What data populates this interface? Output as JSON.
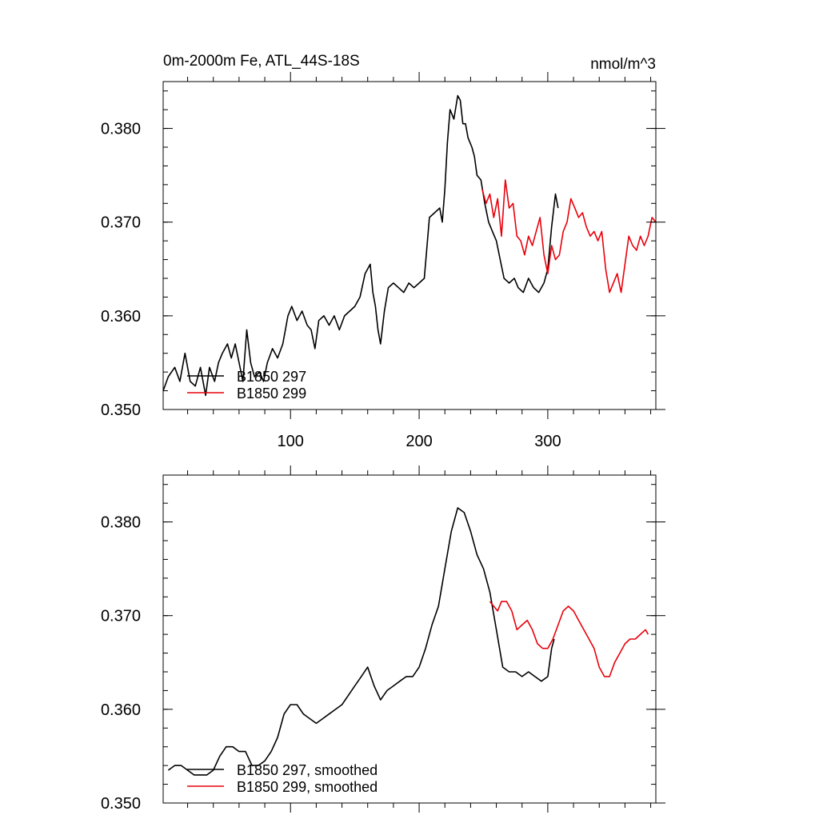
{
  "chart_data": [
    {
      "type": "line",
      "title": "0m-2000m Fe, ATL_44S-18S",
      "units": "nmol/m^3",
      "xlim": [
        1,
        384
      ],
      "ylim": [
        0.35,
        0.385
      ],
      "x_ticks": [
        100,
        200,
        300
      ],
      "x_tick_labels": [
        "100",
        "200",
        "300"
      ],
      "y_ticks": [
        0.35,
        0.36,
        0.37,
        0.38
      ],
      "y_tick_labels": [
        "0.350",
        "0.360",
        "0.370",
        "0.380"
      ],
      "legend_position": "bottom-left",
      "series": [
        {
          "name": "B1850 297",
          "color": "#000000",
          "points": [
            [
              1,
              0.352
            ],
            [
              5,
              0.3535
            ],
            [
              10,
              0.3545
            ],
            [
              14,
              0.353
            ],
            [
              18,
              0.356
            ],
            [
              22,
              0.353
            ],
            [
              26,
              0.3525
            ],
            [
              30,
              0.3545
            ],
            [
              34,
              0.3515
            ],
            [
              37,
              0.3545
            ],
            [
              41,
              0.353
            ],
            [
              44,
              0.355
            ],
            [
              47,
              0.356
            ],
            [
              51,
              0.357
            ],
            [
              54,
              0.3555
            ],
            [
              57,
              0.357
            ],
            [
              60,
              0.355
            ],
            [
              63,
              0.353
            ],
            [
              66,
              0.3585
            ],
            [
              69,
              0.355
            ],
            [
              72,
              0.3535
            ],
            [
              76,
              0.354
            ],
            [
              79,
              0.353
            ],
            [
              82,
              0.355
            ],
            [
              86,
              0.3565
            ],
            [
              90,
              0.3555
            ],
            [
              94,
              0.357
            ],
            [
              98,
              0.36
            ],
            [
              101,
              0.361
            ],
            [
              105,
              0.3595
            ],
            [
              109,
              0.3605
            ],
            [
              113,
              0.359
            ],
            [
              116,
              0.3585
            ],
            [
              119,
              0.3565
            ],
            [
              122,
              0.3595
            ],
            [
              126,
              0.36
            ],
            [
              130,
              0.359
            ],
            [
              134,
              0.36
            ],
            [
              138,
              0.3585
            ],
            [
              142,
              0.36
            ],
            [
              146,
              0.3605
            ],
            [
              150,
              0.361
            ],
            [
              154,
              0.362
            ],
            [
              158,
              0.3645
            ],
            [
              162,
              0.3655
            ],
            [
              164,
              0.3625
            ],
            [
              166,
              0.361
            ],
            [
              168,
              0.3585
            ],
            [
              170,
              0.357
            ],
            [
              173,
              0.3605
            ],
            [
              176,
              0.363
            ],
            [
              180,
              0.3635
            ],
            [
              184,
              0.363
            ],
            [
              188,
              0.3625
            ],
            [
              192,
              0.3635
            ],
            [
              196,
              0.363
            ],
            [
              200,
              0.3635
            ],
            [
              204,
              0.364
            ],
            [
              208,
              0.3705
            ],
            [
              212,
              0.371
            ],
            [
              216,
              0.3715
            ],
            [
              218,
              0.37
            ],
            [
              220,
              0.3735
            ],
            [
              222,
              0.3785
            ],
            [
              224,
              0.382
            ],
            [
              227,
              0.381
            ],
            [
              230,
              0.3835
            ],
            [
              232,
              0.383
            ],
            [
              234,
              0.3805
            ],
            [
              236,
              0.3805
            ],
            [
              238,
              0.379
            ],
            [
              241,
              0.378
            ],
            [
              243,
              0.377
            ],
            [
              245,
              0.375
            ],
            [
              248,
              0.3745
            ],
            [
              251,
              0.372
            ],
            [
              254,
              0.37
            ],
            [
              257,
              0.369
            ],
            [
              260,
              0.368
            ],
            [
              263,
              0.366
            ],
            [
              266,
              0.364
            ],
            [
              270,
              0.3635
            ],
            [
              274,
              0.364
            ],
            [
              277,
              0.363
            ],
            [
              281,
              0.3625
            ],
            [
              285,
              0.364
            ],
            [
              289,
              0.363
            ],
            [
              293,
              0.3625
            ],
            [
              297,
              0.3635
            ],
            [
              300,
              0.365
            ],
            [
              303,
              0.3695
            ],
            [
              306,
              0.373
            ],
            [
              308,
              0.3715
            ]
          ]
        },
        {
          "name": "B1850 299",
          "color": "#e8000b",
          "points": [
            [
              249,
              0.3735
            ],
            [
              252,
              0.372
            ],
            [
              255,
              0.373
            ],
            [
              258,
              0.3705
            ],
            [
              261,
              0.3725
            ],
            [
              264,
              0.3685
            ],
            [
              267,
              0.3745
            ],
            [
              270,
              0.3715
            ],
            [
              273,
              0.372
            ],
            [
              276,
              0.3685
            ],
            [
              279,
              0.368
            ],
            [
              282,
              0.3665
            ],
            [
              285,
              0.3685
            ],
            [
              288,
              0.3675
            ],
            [
              291,
              0.369
            ],
            [
              294,
              0.3705
            ],
            [
              297,
              0.3665
            ],
            [
              300,
              0.3645
            ],
            [
              303,
              0.3675
            ],
            [
              306,
              0.366
            ],
            [
              309,
              0.3665
            ],
            [
              312,
              0.369
            ],
            [
              315,
              0.37
            ],
            [
              318,
              0.3725
            ],
            [
              321,
              0.3715
            ],
            [
              324,
              0.3705
            ],
            [
              327,
              0.371
            ],
            [
              330,
              0.3695
            ],
            [
              333,
              0.3685
            ],
            [
              336,
              0.369
            ],
            [
              339,
              0.368
            ],
            [
              342,
              0.369
            ],
            [
              345,
              0.365
            ],
            [
              348,
              0.3625
            ],
            [
              351,
              0.3635
            ],
            [
              354,
              0.3645
            ],
            [
              357,
              0.3625
            ],
            [
              360,
              0.3655
            ],
            [
              363,
              0.3685
            ],
            [
              366,
              0.3675
            ],
            [
              369,
              0.367
            ],
            [
              372,
              0.3685
            ],
            [
              375,
              0.3675
            ],
            [
              378,
              0.3685
            ],
            [
              381,
              0.3705
            ],
            [
              384,
              0.37
            ]
          ]
        }
      ]
    },
    {
      "type": "line",
      "xlim": [
        1,
        384
      ],
      "ylim": [
        0.35,
        0.385
      ],
      "x_ticks": [
        100,
        200,
        300
      ],
      "y_ticks": [
        0.35,
        0.36,
        0.37,
        0.38
      ],
      "y_tick_labels": [
        "0.350",
        "0.360",
        "0.370",
        "0.380"
      ],
      "legend_position": "bottom-left",
      "series": [
        {
          "name": "B1850 297, smoothed",
          "color": "#000000",
          "points": [
            [
              5,
              0.3535
            ],
            [
              10,
              0.354
            ],
            [
              15,
              0.354
            ],
            [
              20,
              0.3535
            ],
            [
              25,
              0.353
            ],
            [
              30,
              0.353
            ],
            [
              35,
              0.353
            ],
            [
              40,
              0.3535
            ],
            [
              45,
              0.355
            ],
            [
              50,
              0.356
            ],
            [
              55,
              0.356
            ],
            [
              60,
              0.3555
            ],
            [
              65,
              0.3555
            ],
            [
              70,
              0.354
            ],
            [
              75,
              0.354
            ],
            [
              80,
              0.3545
            ],
            [
              85,
              0.3555
            ],
            [
              90,
              0.357
            ],
            [
              95,
              0.3595
            ],
            [
              100,
              0.3605
            ],
            [
              105,
              0.3605
            ],
            [
              110,
              0.3595
            ],
            [
              115,
              0.359
            ],
            [
              120,
              0.3585
            ],
            [
              125,
              0.359
            ],
            [
              130,
              0.3595
            ],
            [
              135,
              0.36
            ],
            [
              140,
              0.3605
            ],
            [
              145,
              0.3615
            ],
            [
              150,
              0.3625
            ],
            [
              155,
              0.3635
            ],
            [
              160,
              0.3645
            ],
            [
              165,
              0.3625
            ],
            [
              170,
              0.361
            ],
            [
              175,
              0.362
            ],
            [
              180,
              0.3625
            ],
            [
              185,
              0.363
            ],
            [
              190,
              0.3635
            ],
            [
              195,
              0.3635
            ],
            [
              200,
              0.3645
            ],
            [
              205,
              0.3665
            ],
            [
              210,
              0.369
            ],
            [
              215,
              0.371
            ],
            [
              220,
              0.375
            ],
            [
              225,
              0.379
            ],
            [
              230,
              0.3815
            ],
            [
              235,
              0.381
            ],
            [
              240,
              0.379
            ],
            [
              245,
              0.3765
            ],
            [
              250,
              0.375
            ],
            [
              255,
              0.3725
            ],
            [
              260,
              0.3685
            ],
            [
              265,
              0.3645
            ],
            [
              270,
              0.364
            ],
            [
              275,
              0.364
            ],
            [
              280,
              0.3635
            ],
            [
              285,
              0.364
            ],
            [
              290,
              0.3635
            ],
            [
              295,
              0.363
            ],
            [
              300,
              0.3635
            ],
            [
              303,
              0.3665
            ],
            [
              305,
              0.3675
            ]
          ]
        },
        {
          "name": "B1850 299, smoothed",
          "color": "#e8000b",
          "points": [
            [
              255,
              0.3715
            ],
            [
              258,
              0.371
            ],
            [
              261,
              0.3705
            ],
            [
              264,
              0.3715
            ],
            [
              268,
              0.3715
            ],
            [
              272,
              0.3705
            ],
            [
              276,
              0.3685
            ],
            [
              280,
              0.369
            ],
            [
              284,
              0.3695
            ],
            [
              288,
              0.3685
            ],
            [
              292,
              0.367
            ],
            [
              296,
              0.3665
            ],
            [
              300,
              0.3665
            ],
            [
              304,
              0.3675
            ],
            [
              308,
              0.369
            ],
            [
              312,
              0.3705
            ],
            [
              316,
              0.371
            ],
            [
              320,
              0.3705
            ],
            [
              324,
              0.3695
            ],
            [
              328,
              0.3685
            ],
            [
              332,
              0.3675
            ],
            [
              336,
              0.3665
            ],
            [
              340,
              0.3645
            ],
            [
              344,
              0.3635
            ],
            [
              348,
              0.3635
            ],
            [
              352,
              0.365
            ],
            [
              356,
              0.366
            ],
            [
              360,
              0.367
            ],
            [
              364,
              0.3675
            ],
            [
              368,
              0.3675
            ],
            [
              372,
              0.368
            ],
            [
              376,
              0.3685
            ],
            [
              378,
              0.368
            ]
          ]
        }
      ]
    }
  ]
}
